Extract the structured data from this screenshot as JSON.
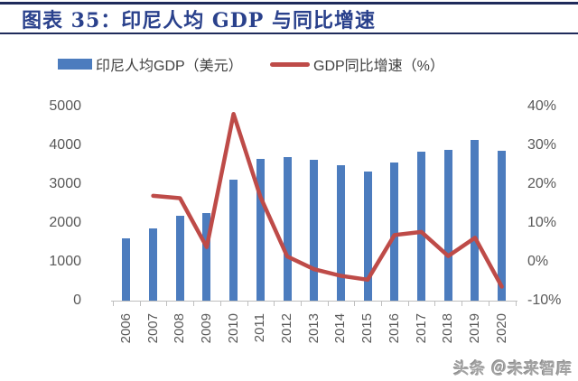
{
  "header": {
    "title": "图表 35：印尼人均 GDP 与同比增速",
    "title_color": "#2A418C",
    "rule_color": "#1F2B5B"
  },
  "legend": {
    "items": [
      {
        "label": "印尼人均GDP（美元）",
        "swatch": "bar-swatch",
        "color": "#4C7CBE"
      },
      {
        "label": "GDP同比增速（%）",
        "swatch": "line-swatch",
        "color": "#BE4B48"
      }
    ]
  },
  "chart_data": {
    "type": "combo-bar-line",
    "categories": [
      "2006",
      "2007",
      "2008",
      "2009",
      "2010",
      "2011",
      "2012",
      "2013",
      "2014",
      "2015",
      "2016",
      "2017",
      "2018",
      "2019",
      "2020"
    ],
    "series": [
      {
        "name": "印尼人均GDP（美元）",
        "type": "bar",
        "axis": "left",
        "color": "#4C7CBE",
        "values": [
          1600,
          1870,
          2180,
          2260,
          3120,
          3640,
          3690,
          3620,
          3490,
          3330,
          3560,
          3840,
          3890,
          4140,
          3870
        ]
      },
      {
        "name": "GDP同比增速（%）",
        "type": "line",
        "axis": "right",
        "color": "#BE4B48",
        "values": [
          null,
          17.0,
          16.4,
          3.8,
          38.1,
          16.7,
          1.4,
          -1.9,
          -3.6,
          -4.6,
          6.9,
          7.7,
          1.5,
          6.2,
          -6.4
        ]
      }
    ],
    "left_axis": {
      "min": 0,
      "max": 5000,
      "ticks": [
        "0",
        "1000",
        "2000",
        "3000",
        "4000",
        "5000"
      ]
    },
    "right_axis": {
      "min": -10,
      "max": 40,
      "ticks": [
        "-10%",
        "0%",
        "10%",
        "20%",
        "30%",
        "40%"
      ]
    },
    "gridlines": false,
    "legend_position": "top",
    "tick_color": "#BFBFBF",
    "label_color": "#595959"
  },
  "watermark": {
    "text": "头条 ＠未来智库"
  }
}
